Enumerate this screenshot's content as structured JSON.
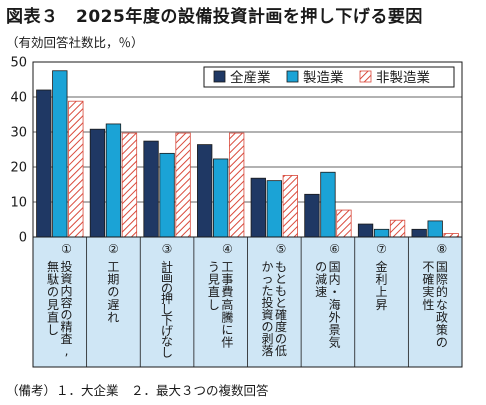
{
  "title": "図表３　2025年度の設備投資計画を押し下げる要因",
  "subtitle": "（有効回答社数比，％）",
  "note": "（備考）１．大企業　２．最大３つの複数回答",
  "chart_data": {
    "type": "bar",
    "ylim": [
      0,
      50
    ],
    "yticks": [
      0,
      10,
      20,
      30,
      40,
      50
    ],
    "grid": true,
    "legend_position": "top-right",
    "categories": [
      [
        "①",
        "投資内容の精査,",
        "無駄の見直し"
      ],
      [
        "②",
        "工期の遅れ"
      ],
      [
        "③",
        "計画の押し下げなし"
      ],
      [
        "④",
        "工事費高騰に伴",
        "う見直し"
      ],
      [
        "⑤",
        "もともと確度の低",
        "かった投資の剥落"
      ],
      [
        "⑥",
        "国内・海外景気",
        "の減速"
      ],
      [
        "⑦",
        "金利上昇"
      ],
      [
        "⑧",
        "国際的な政策の",
        "不確実性"
      ]
    ],
    "series": [
      {
        "name": "全産業",
        "color": "#1f3864",
        "pattern": "solid",
        "values": [
          42,
          30.8,
          27.4,
          26.4,
          16.8,
          12.2,
          3.7,
          2.2
        ]
      },
      {
        "name": "製造業",
        "color": "#1ba3d6",
        "pattern": "solid",
        "values": [
          47.5,
          32.3,
          23.9,
          22.3,
          16.1,
          18.5,
          2.2,
          4.6
        ]
      },
      {
        "name": "非製造業",
        "color": "#d94a3c",
        "pattern": "hatch",
        "values": [
          38.8,
          29.7,
          29.7,
          29.7,
          17.6,
          7.7,
          4.8,
          1.0
        ]
      }
    ]
  }
}
